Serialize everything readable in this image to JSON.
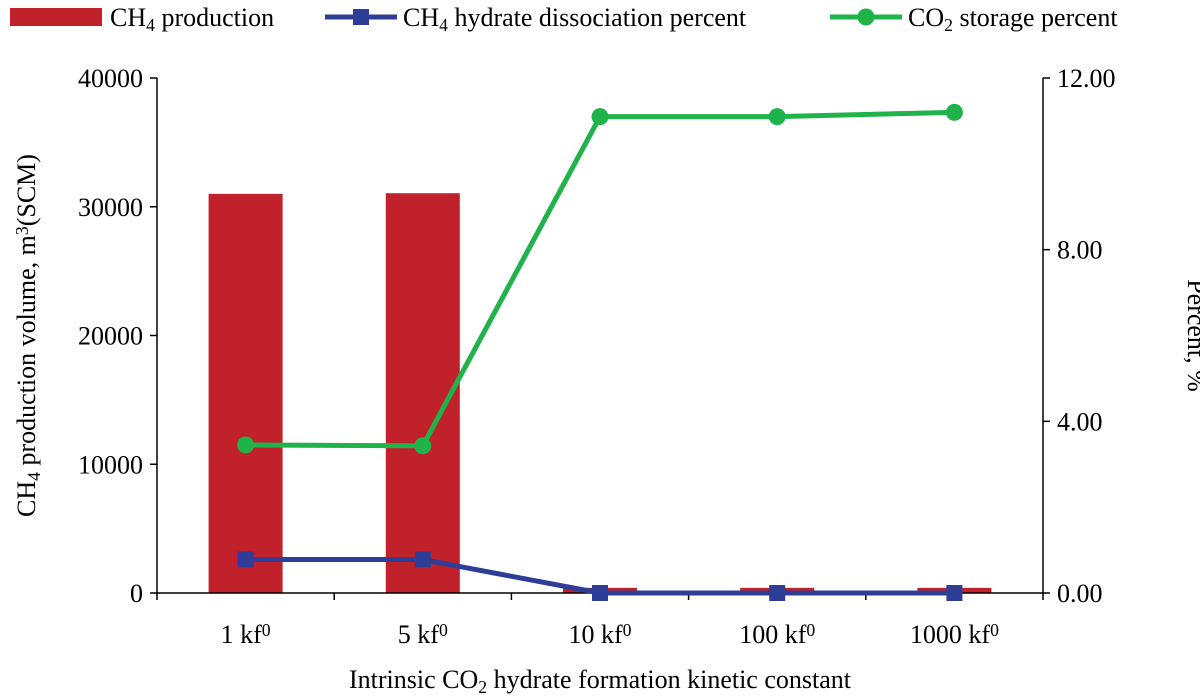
{
  "chart_data": {
    "type": "bar+line",
    "title": "",
    "categories": [
      "1 kf",
      "5 kf",
      "10 kf",
      "100 kf",
      "1000 kf"
    ],
    "category_superscript": "0",
    "xlabel": {
      "pre": "Intrinsic CO",
      "sub": "2",
      "post": " hydrate formation kinetic constant"
    },
    "ylabel_left": {
      "pre": "CH",
      "sub": "4",
      "mid": " production volume, m",
      "sup": "3",
      "post": "(SCM)"
    },
    "ylabel_right": "Percent, %",
    "ylim_left": [
      0,
      40000
    ],
    "yticks_left": [
      "0",
      "10000",
      "20000",
      "30000",
      "40000"
    ],
    "ylim_right": [
      0,
      12
    ],
    "yticks_right": [
      "0.00",
      "4.00",
      "8.00",
      "12.00"
    ],
    "grid": false,
    "legend_position": "top",
    "series": [
      {
        "name": "CH4 production",
        "legend": {
          "pre": "CH",
          "sub": "4",
          "post": " production"
        },
        "type": "bar",
        "axis": "left",
        "color": "#c0212b",
        "values": [
          31000,
          31050,
          400,
          400,
          400
        ]
      },
      {
        "name": "CH4 hydrate dissociation percent",
        "legend": {
          "pre": "CH",
          "sub": "4",
          "post": " hydrate dissociation percent"
        },
        "type": "line",
        "marker": "square",
        "axis": "right",
        "color": "#2e3e96",
        "values": [
          0.78,
          0.78,
          0.0,
          0.0,
          0.0
        ]
      },
      {
        "name": "CO2 storage percent",
        "legend": {
          "pre": "CO",
          "sub": "2",
          "post": " storage percent"
        },
        "type": "line",
        "marker": "circle",
        "axis": "right",
        "color": "#1fb34a",
        "values": [
          3.45,
          3.43,
          11.1,
          11.1,
          11.2
        ]
      }
    ]
  }
}
